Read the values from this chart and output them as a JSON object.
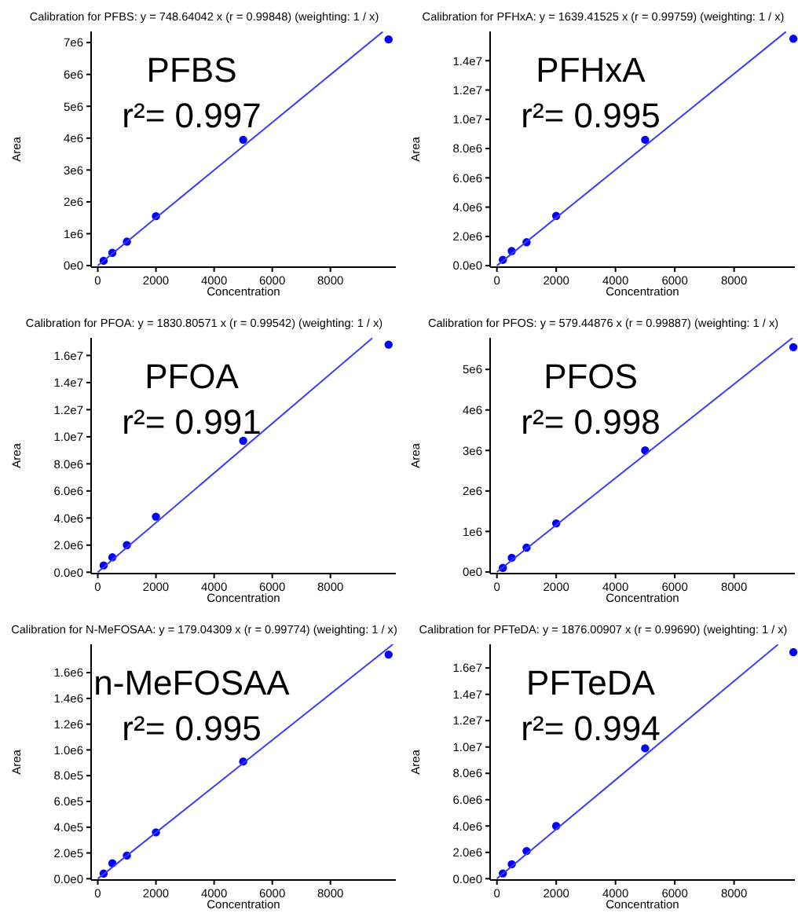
{
  "chart_data": [
    {
      "type": "scatter",
      "title": "Calibration for PFBS: y = 748.64042 x (r = 0.99848)  (weighting: 1 / x)",
      "xlabel": "Concentration",
      "ylabel": "Area",
      "annotations": [
        "PFBS",
        "r²= 0.997"
      ],
      "xlim": [
        -230,
        10250
      ],
      "ylim": [
        -50000,
        7350000
      ],
      "xticks": [
        0,
        2000,
        4000,
        6000,
        8000
      ],
      "yticks": [
        {
          "value": 0,
          "label": "0e0"
        },
        {
          "value": 1000000,
          "label": "1e6"
        },
        {
          "value": 2000000,
          "label": "2e6"
        },
        {
          "value": 3000000,
          "label": "3e6"
        },
        {
          "value": 4000000,
          "label": "4e6"
        },
        {
          "value": 5000000,
          "label": "5e6"
        },
        {
          "value": 6000000,
          "label": "6e6"
        },
        {
          "value": 7000000,
          "label": "7e6"
        }
      ],
      "series": [
        {
          "color": "#0000ff",
          "marker": "circle",
          "x": [
            200,
            500,
            1000,
            2000,
            5000,
            10000
          ],
          "values": [
            150000,
            400000,
            750000,
            1550000,
            3950000,
            7100000
          ]
        },
        {
          "type": "line",
          "color": "#3b3bff",
          "x": [
            0,
            9800
          ],
          "values": [
            0,
            7340000
          ]
        }
      ]
    },
    {
      "type": "scatter",
      "title": "Calibration for PFHxA: y = 1639.41525 x (r = 0.99759)  (weighting: 1 / x)",
      "xlabel": "Concentration",
      "ylabel": "Area",
      "annotations": [
        "PFHxA",
        "r²= 0.995"
      ],
      "xlim": [
        -230,
        10050
      ],
      "ylim": [
        -100000,
        16000000
      ],
      "xticks": [
        0,
        2000,
        4000,
        6000,
        8000
      ],
      "yticks": [
        {
          "value": 0,
          "label": "0.0e0"
        },
        {
          "value": 2000000,
          "label": "2.0e6"
        },
        {
          "value": 4000000,
          "label": "4.0e6"
        },
        {
          "value": 6000000,
          "label": "6.0e6"
        },
        {
          "value": 8000000,
          "label": "8.0e6"
        },
        {
          "value": 10000000,
          "label": "1.0e7"
        },
        {
          "value": 12000000,
          "label": "1.2e7"
        },
        {
          "value": 14000000,
          "label": "1.4e7"
        }
      ],
      "series": [
        {
          "color": "#0000ff",
          "marker": "circle",
          "x": [
            200,
            500,
            1000,
            2000,
            5000,
            10000
          ],
          "values": [
            400000,
            1000000,
            1600000,
            3400000,
            8600000,
            15500000
          ]
        },
        {
          "type": "line",
          "color": "#3b3bff",
          "x": [
            0,
            9750
          ],
          "values": [
            0,
            15980000
          ]
        }
      ]
    },
    {
      "type": "scatter",
      "title": "Calibration for PFOA: y = 1830.80571 x (r = 0.99542)  (weighting: 1 / x)",
      "xlabel": "Concentration",
      "ylabel": "Area",
      "annotations": [
        "PFOA",
        "r²= 0.991"
      ],
      "xlim": [
        -230,
        10250
      ],
      "ylim": [
        -100000,
        17300000
      ],
      "xticks": [
        0,
        2000,
        4000,
        6000,
        8000
      ],
      "yticks": [
        {
          "value": 0,
          "label": "0.0e0"
        },
        {
          "value": 2000000,
          "label": "2.0e6"
        },
        {
          "value": 4000000,
          "label": "4.0e6"
        },
        {
          "value": 6000000,
          "label": "6.0e6"
        },
        {
          "value": 8000000,
          "label": "8.0e6"
        },
        {
          "value": 10000000,
          "label": "1.0e7"
        },
        {
          "value": 12000000,
          "label": "1.2e7"
        },
        {
          "value": 14000000,
          "label": "1.4e7"
        },
        {
          "value": 16000000,
          "label": "1.6e7"
        }
      ],
      "series": [
        {
          "color": "#0000ff",
          "marker": "circle",
          "x": [
            200,
            500,
            1000,
            2000,
            5000,
            10000
          ],
          "values": [
            500000,
            1100000,
            2000000,
            4100000,
            9700000,
            16800000
          ]
        },
        {
          "type": "line",
          "color": "#3b3bff",
          "x": [
            0,
            9440
          ],
          "values": [
            0,
            17280000
          ]
        }
      ]
    },
    {
      "type": "scatter",
      "title": "Calibration for PFOS: y = 579.44876 x (r = 0.99887)  (weighting: 1 / x)",
      "xlabel": "Concentration",
      "ylabel": "Area",
      "annotations": [
        "PFOS",
        "r²= 0.998"
      ],
      "xlim": [
        -230,
        10050
      ],
      "ylim": [
        -40000,
        5780000
      ],
      "xticks": [
        0,
        2000,
        4000,
        6000,
        8000
      ],
      "yticks": [
        {
          "value": 0,
          "label": "0e0"
        },
        {
          "value": 1000000,
          "label": "1e6"
        },
        {
          "value": 2000000,
          "label": "2e6"
        },
        {
          "value": 3000000,
          "label": "3e6"
        },
        {
          "value": 4000000,
          "label": "4e6"
        },
        {
          "value": 5000000,
          "label": "5e6"
        }
      ],
      "series": [
        {
          "color": "#0000ff",
          "marker": "circle",
          "x": [
            200,
            500,
            1000,
            2000,
            5000,
            10000
          ],
          "values": [
            100000,
            350000,
            600000,
            1200000,
            3000000,
            5550000
          ]
        },
        {
          "type": "line",
          "color": "#3b3bff",
          "x": [
            0,
            9970
          ],
          "values": [
            0,
            5780000
          ]
        }
      ]
    },
    {
      "type": "scatter",
      "title": "Calibration for N-MeFOSAA: y = 179.04309 x (r = 0.99774)  (weighting: 1 / x)",
      "xlabel": "Concentration",
      "ylabel": "Area",
      "annotations": [
        "n-MeFOSAA",
        "r²= 0.995"
      ],
      "xlim": [
        -230,
        10250
      ],
      "ylim": [
        -10000,
        1820000
      ],
      "xticks": [
        0,
        2000,
        4000,
        6000,
        8000
      ],
      "yticks": [
        {
          "value": 0,
          "label": "0.0e0"
        },
        {
          "value": 200000,
          "label": "2.0e5"
        },
        {
          "value": 400000,
          "label": "4.0e5"
        },
        {
          "value": 600000,
          "label": "6.0e5"
        },
        {
          "value": 800000,
          "label": "8.0e5"
        },
        {
          "value": 1000000,
          "label": "1.0e6"
        },
        {
          "value": 1200000,
          "label": "1.2e6"
        },
        {
          "value": 1400000,
          "label": "1.4e6"
        },
        {
          "value": 1600000,
          "label": "1.6e6"
        }
      ],
      "series": [
        {
          "color": "#0000ff",
          "marker": "circle",
          "x": [
            200,
            500,
            1000,
            2000,
            5000,
            10000
          ],
          "values": [
            40000,
            120000,
            180000,
            360000,
            910000,
            1740000
          ]
        },
        {
          "type": "line",
          "color": "#3b3bff",
          "x": [
            0,
            10150
          ],
          "values": [
            0,
            1820000
          ]
        }
      ]
    },
    {
      "type": "scatter",
      "title": "Calibration for PFTeDA: y = 1876.00907 x (r = 0.99690)  (weighting: 1 / x)",
      "xlabel": "Concentration",
      "ylabel": "Area",
      "annotations": [
        "PFTeDA",
        "r²= 0.994"
      ],
      "xlim": [
        -230,
        10050
      ],
      "ylim": [
        -100000,
        17800000
      ],
      "xticks": [
        0,
        2000,
        4000,
        6000,
        8000
      ],
      "yticks": [
        {
          "value": 0,
          "label": "0.0e0"
        },
        {
          "value": 2000000,
          "label": "2.0e6"
        },
        {
          "value": 4000000,
          "label": "4.0e6"
        },
        {
          "value": 6000000,
          "label": "6.0e6"
        },
        {
          "value": 8000000,
          "label": "8.0e6"
        },
        {
          "value": 10000000,
          "label": "1.0e7"
        },
        {
          "value": 12000000,
          "label": "1.2e7"
        },
        {
          "value": 14000000,
          "label": "1.4e7"
        },
        {
          "value": 16000000,
          "label": "1.6e7"
        }
      ],
      "series": [
        {
          "color": "#0000ff",
          "marker": "circle",
          "x": [
            200,
            500,
            1000,
            2000,
            5000,
            10000
          ],
          "values": [
            400000,
            1100000,
            2100000,
            4000000,
            9900000,
            17200000
          ]
        },
        {
          "type": "line",
          "color": "#3b3bff",
          "x": [
            0,
            9480
          ],
          "values": [
            0,
            17780000
          ]
        }
      ]
    }
  ]
}
